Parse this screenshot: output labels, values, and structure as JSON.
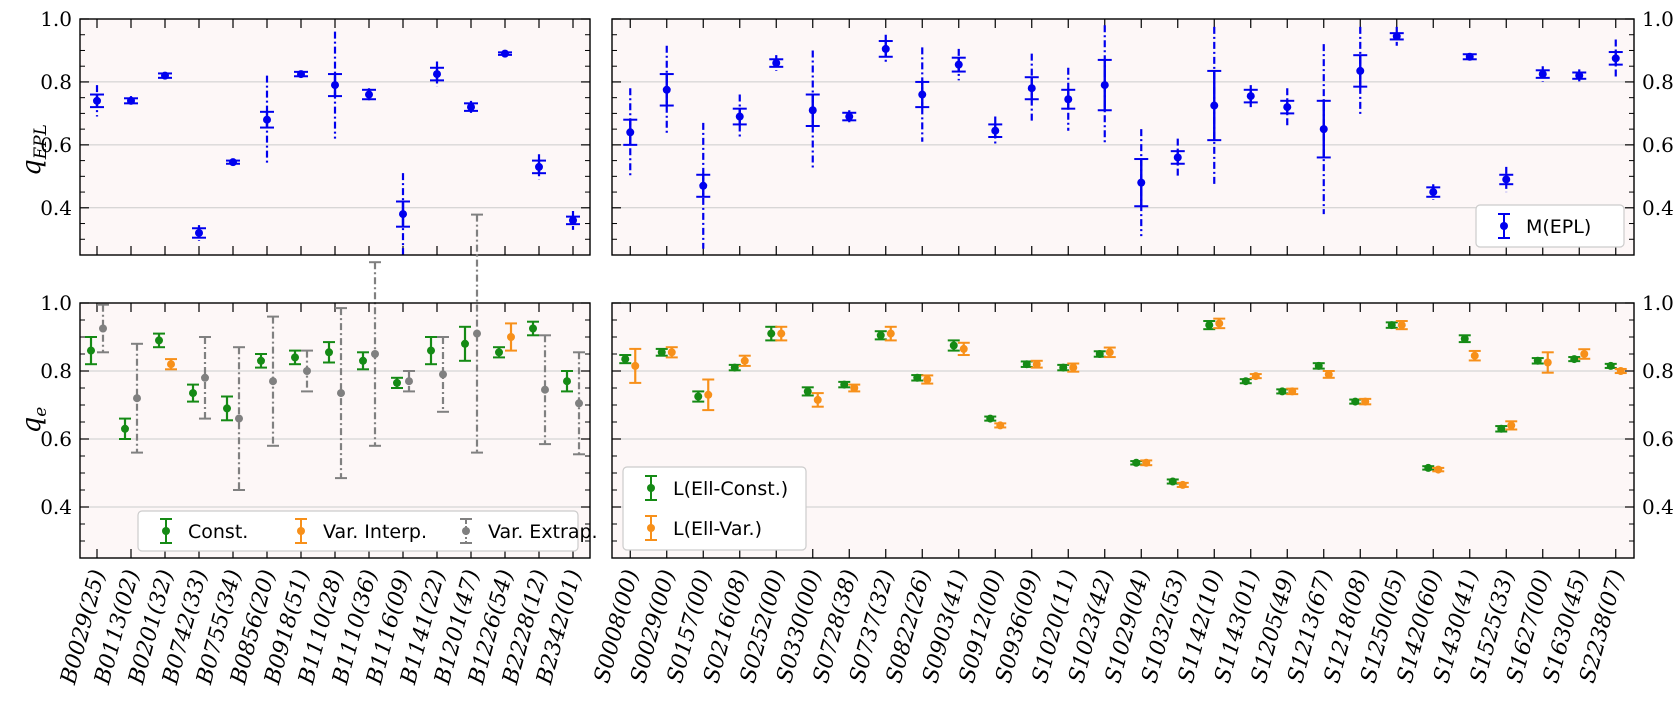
{
  "colors": {
    "panel_bg": "#fdf7f7",
    "grid": "#cccccc",
    "blue": "#0000ee",
    "green": "#158a15",
    "orange": "#f7901a",
    "gray": "#808080"
  },
  "chart_data": [
    {
      "id": "top-left",
      "type": "scatter",
      "ylabel": "q_EPL",
      "ylim": [
        0.25,
        1.0
      ],
      "yticks": [
        "1.0",
        "0.8",
        "0.6",
        "0.4"
      ],
      "categories": [
        "B0029(25)",
        "B0113(02)",
        "B0201(32)",
        "B0742(33)",
        "B0755(34)",
        "B0856(20)",
        "B0918(51)",
        "B1110(28)",
        "B1110(36)",
        "B1116(09)",
        "B1141(22)",
        "B1201(47)",
        "B1226(54)",
        "B2228(12)",
        "B2342(01)"
      ],
      "series": [
        {
          "name": "M(EPL)",
          "color": "blue",
          "values": [
            0.74,
            0.74,
            0.82,
            0.32,
            0.545,
            0.68,
            0.825,
            0.79,
            0.76,
            0.38,
            0.825,
            0.72,
            0.89,
            0.53,
            0.36
          ],
          "err_inner": [
            0.02,
            0.008,
            0.007,
            0.015,
            0.005,
            0.025,
            0.007,
            0.035,
            0.015,
            0.04,
            0.02,
            0.012,
            0.004,
            0.02,
            0.012
          ],
          "err_outer": [
            0.05,
            0.015,
            0.01,
            0.025,
            0.008,
            0.14,
            0.008,
            0.17,
            0.02,
            0.13,
            0.04,
            0.02,
            0.006,
            0.04,
            0.03
          ]
        }
      ]
    },
    {
      "id": "top-right",
      "type": "scatter",
      "ylim": [
        0.25,
        1.0
      ],
      "yticks": [
        "1.0",
        "0.8",
        "0.6",
        "0.4"
      ],
      "categories": [
        "S0008(00)",
        "S0029(00)",
        "S0157(00)",
        "S0216(08)",
        "S0252(00)",
        "S0330(00)",
        "S0728(38)",
        "S0737(32)",
        "S0822(26)",
        "S0903(41)",
        "S0912(00)",
        "S0936(09)",
        "S1020(11)",
        "S1023(42)",
        "S1029(04)",
        "S1032(53)",
        "S1142(10)",
        "S1143(01)",
        "S1205(49)",
        "S1213(67)",
        "S1218(08)",
        "S1250(05)",
        "S1420(60)",
        "S1430(41)",
        "S1525(33)",
        "S1627(00)",
        "S1630(45)",
        "S2238(07)"
      ],
      "series": [
        {
          "name": "M(EPL)",
          "color": "blue",
          "values": [
            0.64,
            0.775,
            0.47,
            0.69,
            0.86,
            0.71,
            0.69,
            0.905,
            0.76,
            0.855,
            0.645,
            0.78,
            0.745,
            0.79,
            0.48,
            0.56,
            0.725,
            0.755,
            0.72,
            0.65,
            0.835,
            0.945,
            0.45,
            0.88,
            0.49,
            0.825,
            0.82,
            0.875
          ],
          "err_inner": [
            0.04,
            0.05,
            0.035,
            0.025,
            0.012,
            0.05,
            0.012,
            0.025,
            0.04,
            0.022,
            0.02,
            0.035,
            0.03,
            0.08,
            0.075,
            0.02,
            0.11,
            0.02,
            0.02,
            0.09,
            0.05,
            0.01,
            0.015,
            0.008,
            0.015,
            0.012,
            0.01,
            0.02
          ],
          "err_outer": [
            0.14,
            0.14,
            0.2,
            0.07,
            0.025,
            0.19,
            0.02,
            0.045,
            0.15,
            0.05,
            0.045,
            0.11,
            0.1,
            0.19,
            0.17,
            0.06,
            0.25,
            0.035,
            0.06,
            0.27,
            0.14,
            0.03,
            0.025,
            0.01,
            0.04,
            0.025,
            0.02,
            0.06
          ]
        }
      ],
      "legend": {
        "position": "lower-right",
        "entries": [
          "M(EPL)"
        ]
      }
    },
    {
      "id": "bottom-left",
      "type": "scatter",
      "ylabel": "q_e",
      "ylim": [
        0.25,
        1.0
      ],
      "yticks": [
        "1.0",
        "0.8",
        "0.6",
        "0.4"
      ],
      "categories": [
        "B0029(25)",
        "B0113(02)",
        "B0201(32)",
        "B0742(33)",
        "B0755(34)",
        "B0856(20)",
        "B0918(51)",
        "B1110(28)",
        "B1110(36)",
        "B1116(09)",
        "B1141(22)",
        "B1201(47)",
        "B1226(54)",
        "B2228(12)",
        "B2342(01)"
      ],
      "series": [
        {
          "name": "Const.",
          "color": "green",
          "values": [
            0.86,
            0.63,
            0.89,
            0.735,
            0.69,
            0.83,
            0.84,
            0.855,
            0.83,
            0.765,
            0.86,
            0.88,
            0.855,
            0.925,
            0.77
          ],
          "err": [
            0.04,
            0.03,
            0.02,
            0.025,
            0.035,
            0.02,
            0.02,
            0.03,
            0.025,
            0.015,
            0.04,
            0.05,
            0.015,
            0.02,
            0.03
          ]
        },
        {
          "name": "Var. Interp.",
          "color": "orange",
          "values": [
            null,
            null,
            0.82,
            null,
            null,
            null,
            null,
            null,
            null,
            null,
            null,
            null,
            0.9,
            null,
            null
          ],
          "err": [
            0,
            0,
            0.015,
            0,
            0,
            0,
            0,
            0,
            0,
            0,
            0,
            0,
            0.04,
            0,
            0
          ]
        },
        {
          "name": "Var. Extrap.",
          "color": "gray",
          "values": [
            0.925,
            0.72,
            null,
            0.78,
            0.66,
            0.77,
            0.8,
            0.735,
            0.85,
            0.77,
            0.79,
            0.91,
            null,
            0.745,
            0.705
          ],
          "err": [
            0.07,
            0.16,
            0,
            0.12,
            0.21,
            0.19,
            0.06,
            0.25,
            0.27,
            0.03,
            0.11,
            0.35,
            0,
            0.16,
            0.15
          ]
        }
      ],
      "legend": {
        "position": "lower-right",
        "entries": [
          "Const.",
          "Var. Interp.",
          "Var. Extrap."
        ]
      }
    },
    {
      "id": "bottom-right",
      "type": "scatter",
      "ylim": [
        0.25,
        1.0
      ],
      "yticks": [
        "1.0",
        "0.8",
        "0.6",
        "0.4"
      ],
      "categories": [
        "S0008(00)",
        "S0029(00)",
        "S0157(00)",
        "S0216(08)",
        "S0252(00)",
        "S0330(00)",
        "S0728(38)",
        "S0737(32)",
        "S0822(26)",
        "S0903(41)",
        "S0912(00)",
        "S0936(09)",
        "S1020(11)",
        "S1023(42)",
        "S1029(04)",
        "S1032(53)",
        "S1142(10)",
        "S1143(01)",
        "S1205(49)",
        "S1213(67)",
        "S1218(08)",
        "S1250(05)",
        "S1420(60)",
        "S1430(41)",
        "S1525(33)",
        "S1627(00)",
        "S1630(45)",
        "S2238(07)"
      ],
      "series": [
        {
          "name": "L(Ell-Const.)",
          "color": "green",
          "values": [
            0.835,
            0.855,
            0.725,
            0.81,
            0.91,
            0.74,
            0.76,
            0.905,
            0.78,
            0.875,
            0.66,
            0.82,
            0.81,
            0.85,
            0.53,
            0.475,
            0.935,
            0.77,
            0.74,
            0.815,
            0.71,
            0.935,
            0.515,
            0.895,
            0.63,
            0.83,
            0.835,
            0.815
          ],
          "err": [
            0.012,
            0.01,
            0.015,
            0.008,
            0.02,
            0.012,
            0.008,
            0.012,
            0.008,
            0.015,
            0.006,
            0.008,
            0.008,
            0.008,
            0.005,
            0.006,
            0.012,
            0.006,
            0.006,
            0.008,
            0.006,
            0.008,
            0.005,
            0.01,
            0.008,
            0.008,
            0.006,
            0.006
          ]
        },
        {
          "name": "L(Ell-Var.)",
          "color": "orange",
          "values": [
            0.815,
            0.855,
            0.73,
            0.83,
            0.91,
            0.715,
            0.75,
            0.91,
            0.775,
            0.865,
            0.64,
            0.82,
            0.81,
            0.855,
            0.53,
            0.465,
            0.94,
            0.785,
            0.74,
            0.79,
            0.71,
            0.935,
            0.51,
            0.845,
            0.64,
            0.825,
            0.85,
            0.8
          ],
          "err": [
            0.05,
            0.015,
            0.045,
            0.015,
            0.02,
            0.02,
            0.01,
            0.02,
            0.012,
            0.018,
            0.006,
            0.01,
            0.012,
            0.014,
            0.007,
            0.006,
            0.014,
            0.006,
            0.008,
            0.01,
            0.008,
            0.012,
            0.005,
            0.014,
            0.012,
            0.03,
            0.014,
            0.006
          ]
        }
      ],
      "legend": {
        "position": "lower-left",
        "entries": [
          "L(Ell-Const.)",
          "L(Ell-Var.)"
        ]
      }
    }
  ]
}
